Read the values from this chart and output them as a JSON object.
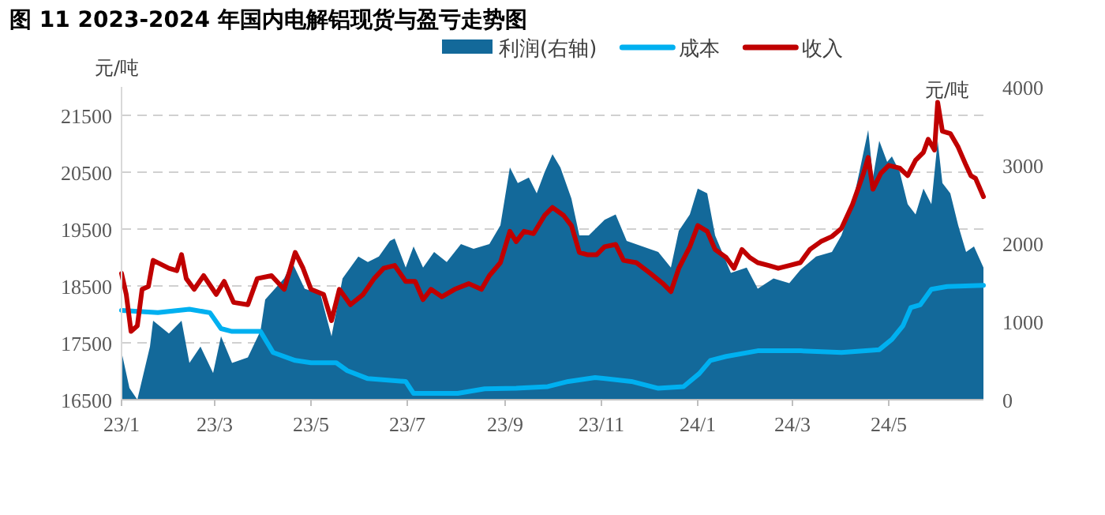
{
  "chart_data": {
    "type": "line",
    "title": "图 11  2023-2024 年国内电解铝现货与盈亏走势图",
    "ylabel": "元/吨",
    "y2label": "元/吨",
    "xlim": [
      "2023-01-01",
      "2024-06-30"
    ],
    "xticks": [
      {
        "value": "2023-01-01",
        "label": "23/1"
      },
      {
        "value": "2023-03-01",
        "label": "23/3"
      },
      {
        "value": "2023-05-01",
        "label": "23/5"
      },
      {
        "value": "2023-07-01",
        "label": "23/7"
      },
      {
        "value": "2023-09-01",
        "label": "23/9"
      },
      {
        "value": "2023-11-01",
        "label": "23/11"
      },
      {
        "value": "2024-01-01",
        "label": "24/1"
      },
      {
        "value": "2024-03-01",
        "label": "24/3"
      },
      {
        "value": "2024-05-01",
        "label": "24/5"
      }
    ],
    "ylim": [
      16500,
      22000
    ],
    "yticks": [
      16500,
      17500,
      18500,
      19500,
      20500,
      21500
    ],
    "y2lim": [
      0,
      4000
    ],
    "y2ticks": [
      0,
      1000,
      2000,
      3000,
      4000
    ],
    "grid": "y",
    "legend": "top",
    "line_style": "solid",
    "marker": "none",
    "series": [
      {
        "name": "利润(右轴)",
        "type": "area",
        "axis": "y2",
        "color": "#13699a",
        "x": [
          "2023-01-01",
          "2023-01-06",
          "2023-01-11",
          "2023-01-19",
          "2023-01-21",
          "2023-01-31",
          "2023-02-08",
          "2023-02-13",
          "2023-02-20",
          "2023-02-28",
          "2023-03-05",
          "2023-03-12",
          "2023-03-22",
          "2023-03-30",
          "2023-04-02",
          "2023-04-14",
          "2023-04-19",
          "2023-04-27",
          "2023-05-07",
          "2023-05-14",
          "2023-05-21",
          "2023-05-31",
          "2023-06-06",
          "2023-06-13",
          "2023-06-20",
          "2023-06-23",
          "2023-06-30",
          "2023-07-05",
          "2023-07-11",
          "2023-07-18",
          "2023-07-26",
          "2023-08-04",
          "2023-08-12",
          "2023-08-22",
          "2023-08-29",
          "2023-09-04",
          "2023-09-09",
          "2023-09-16",
          "2023-09-21",
          "2023-09-26",
          "2023-10-01",
          "2023-10-06",
          "2023-10-13",
          "2023-10-18",
          "2023-10-24",
          "2023-11-03",
          "2023-11-10",
          "2023-11-17",
          "2023-11-27",
          "2023-12-07",
          "2023-12-15",
          "2023-12-20",
          "2023-12-27",
          "2024-01-01",
          "2024-01-07",
          "2024-01-12",
          "2024-01-22",
          "2024-02-01",
          "2024-02-08",
          "2024-02-18",
          "2024-02-28",
          "2024-03-06",
          "2024-03-16",
          "2024-03-26",
          "2024-04-01",
          "2024-04-08",
          "2024-04-13",
          "2024-04-18",
          "2024-04-21",
          "2024-04-25",
          "2024-04-30",
          "2024-05-03",
          "2024-05-08",
          "2024-05-13",
          "2024-05-18",
          "2024-05-23",
          "2024-05-28",
          "2024-06-01",
          "2024-06-04",
          "2024-06-09",
          "2024-06-14",
          "2024-06-19",
          "2024-06-24",
          "2024-06-30"
        ],
        "values": [
          610,
          150,
          0,
          680,
          1010,
          845,
          1010,
          470,
          680,
          340,
          810,
          470,
          540,
          880,
          1280,
          1550,
          1760,
          1420,
          1350,
          810,
          1550,
          1830,
          1760,
          1830,
          2030,
          2060,
          1690,
          1960,
          1690,
          1890,
          1760,
          1990,
          1930,
          1990,
          2230,
          2970,
          2770,
          2840,
          2640,
          2910,
          3140,
          2970,
          2570,
          2100,
          2100,
          2300,
          2370,
          2030,
          1960,
          1890,
          1690,
          2160,
          2370,
          2700,
          2640,
          2100,
          1620,
          1690,
          1420,
          1550,
          1490,
          1660,
          1830,
          1890,
          2100,
          2500,
          2970,
          3450,
          2840,
          3310,
          3040,
          3110,
          2910,
          2500,
          2370,
          2700,
          2500,
          3310,
          2770,
          2640,
          2230,
          1890,
          1960,
          1690
        ]
      },
      {
        "name": "成本",
        "color": "#00b0f0",
        "x": [
          "2023-01-01",
          "2023-01-24",
          "2023-02-13",
          "2023-02-26",
          "2023-03-05",
          "2023-03-12",
          "2023-03-30",
          "2023-04-07",
          "2023-04-21",
          "2023-05-01",
          "2023-05-17",
          "2023-05-24",
          "2023-06-06",
          "2023-06-30",
          "2023-07-05",
          "2023-08-02",
          "2023-08-19",
          "2023-09-08",
          "2023-09-28",
          "2023-10-11",
          "2023-10-28",
          "2023-11-20",
          "2023-12-07",
          "2023-12-23",
          "2024-01-02",
          "2024-01-09",
          "2024-01-19",
          "2024-02-08",
          "2024-03-06",
          "2024-04-01",
          "2024-04-25",
          "2024-05-03",
          "2024-05-10",
          "2024-05-15",
          "2024-05-21",
          "2024-05-28",
          "2024-06-07",
          "2024-06-30"
        ],
        "values": [
          18070,
          18030,
          18090,
          18030,
          17750,
          17700,
          17700,
          17330,
          17190,
          17150,
          17150,
          17010,
          16870,
          16820,
          16610,
          16610,
          16690,
          16700,
          16730,
          16820,
          16890,
          16820,
          16700,
          16730,
          16960,
          17190,
          17260,
          17360,
          17360,
          17330,
          17380,
          17560,
          17800,
          18120,
          18170,
          18440,
          18490,
          18510
        ]
      },
      {
        "name": "收入",
        "color": "#c00000",
        "x": [
          "2023-01-01",
          "2023-01-04",
          "2023-01-07",
          "2023-01-11",
          "2023-01-14",
          "2023-01-18",
          "2023-01-21",
          "2023-01-31",
          "2023-02-05",
          "2023-02-08",
          "2023-02-11",
          "2023-02-16",
          "2023-02-22",
          "2023-03-02",
          "2023-03-07",
          "2023-03-13",
          "2023-03-22",
          "2023-03-28",
          "2023-04-06",
          "2023-04-14",
          "2023-04-21",
          "2023-04-26",
          "2023-05-01",
          "2023-05-09",
          "2023-05-14",
          "2023-05-19",
          "2023-05-26",
          "2023-06-03",
          "2023-06-10",
          "2023-06-16",
          "2023-06-23",
          "2023-06-30",
          "2023-07-06",
          "2023-07-11",
          "2023-07-16",
          "2023-07-23",
          "2023-07-31",
          "2023-08-09",
          "2023-08-17",
          "2023-08-22",
          "2023-08-29",
          "2023-09-04",
          "2023-09-08",
          "2023-09-13",
          "2023-09-19",
          "2023-09-26",
          "2023-10-01",
          "2023-10-08",
          "2023-10-13",
          "2023-10-18",
          "2023-10-23",
          "2023-10-29",
          "2023-11-03",
          "2023-11-10",
          "2023-11-15",
          "2023-11-23",
          "2023-12-02",
          "2023-12-10",
          "2023-12-15",
          "2023-12-20",
          "2023-12-27",
          "2024-01-01",
          "2024-01-07",
          "2024-01-12",
          "2024-01-19",
          "2024-01-24",
          "2024-01-29",
          "2024-02-03",
          "2024-02-08",
          "2024-02-15",
          "2024-02-21",
          "2024-02-28",
          "2024-03-06",
          "2024-03-12",
          "2024-03-19",
          "2024-03-26",
          "2024-04-01",
          "2024-04-08",
          "2024-04-15",
          "2024-04-18",
          "2024-04-21",
          "2024-04-26",
          "2024-05-01",
          "2024-05-08",
          "2024-05-13",
          "2024-05-18",
          "2024-05-23",
          "2024-05-26",
          "2024-05-30",
          "2024-06-01",
          "2024-06-04",
          "2024-06-09",
          "2024-06-14",
          "2024-06-19",
          "2024-06-22",
          "2024-06-25",
          "2024-06-30"
        ],
        "values": [
          18720,
          18350,
          17700,
          17800,
          18440,
          18490,
          18950,
          18810,
          18770,
          19050,
          18630,
          18440,
          18680,
          18350,
          18580,
          18210,
          18170,
          18630,
          18680,
          18440,
          19090,
          18810,
          18440,
          18350,
          17890,
          18440,
          18170,
          18350,
          18630,
          18810,
          18860,
          18580,
          18580,
          18260,
          18440,
          18310,
          18440,
          18540,
          18440,
          18680,
          18910,
          19460,
          19280,
          19460,
          19420,
          19740,
          19880,
          19740,
          19560,
          19090,
          19050,
          19050,
          19190,
          19230,
          18950,
          18910,
          18720,
          18540,
          18400,
          18810,
          19190,
          19560,
          19460,
          19140,
          19000,
          18810,
          19140,
          19000,
          18910,
          18860,
          18810,
          18860,
          18910,
          19140,
          19280,
          19370,
          19510,
          19930,
          20480,
          20760,
          20200,
          20480,
          20620,
          20570,
          20440,
          20710,
          20850,
          21080,
          20890,
          21730,
          21220,
          21180,
          20940,
          20620,
          20440,
          20390,
          20070
        ]
      }
    ]
  }
}
